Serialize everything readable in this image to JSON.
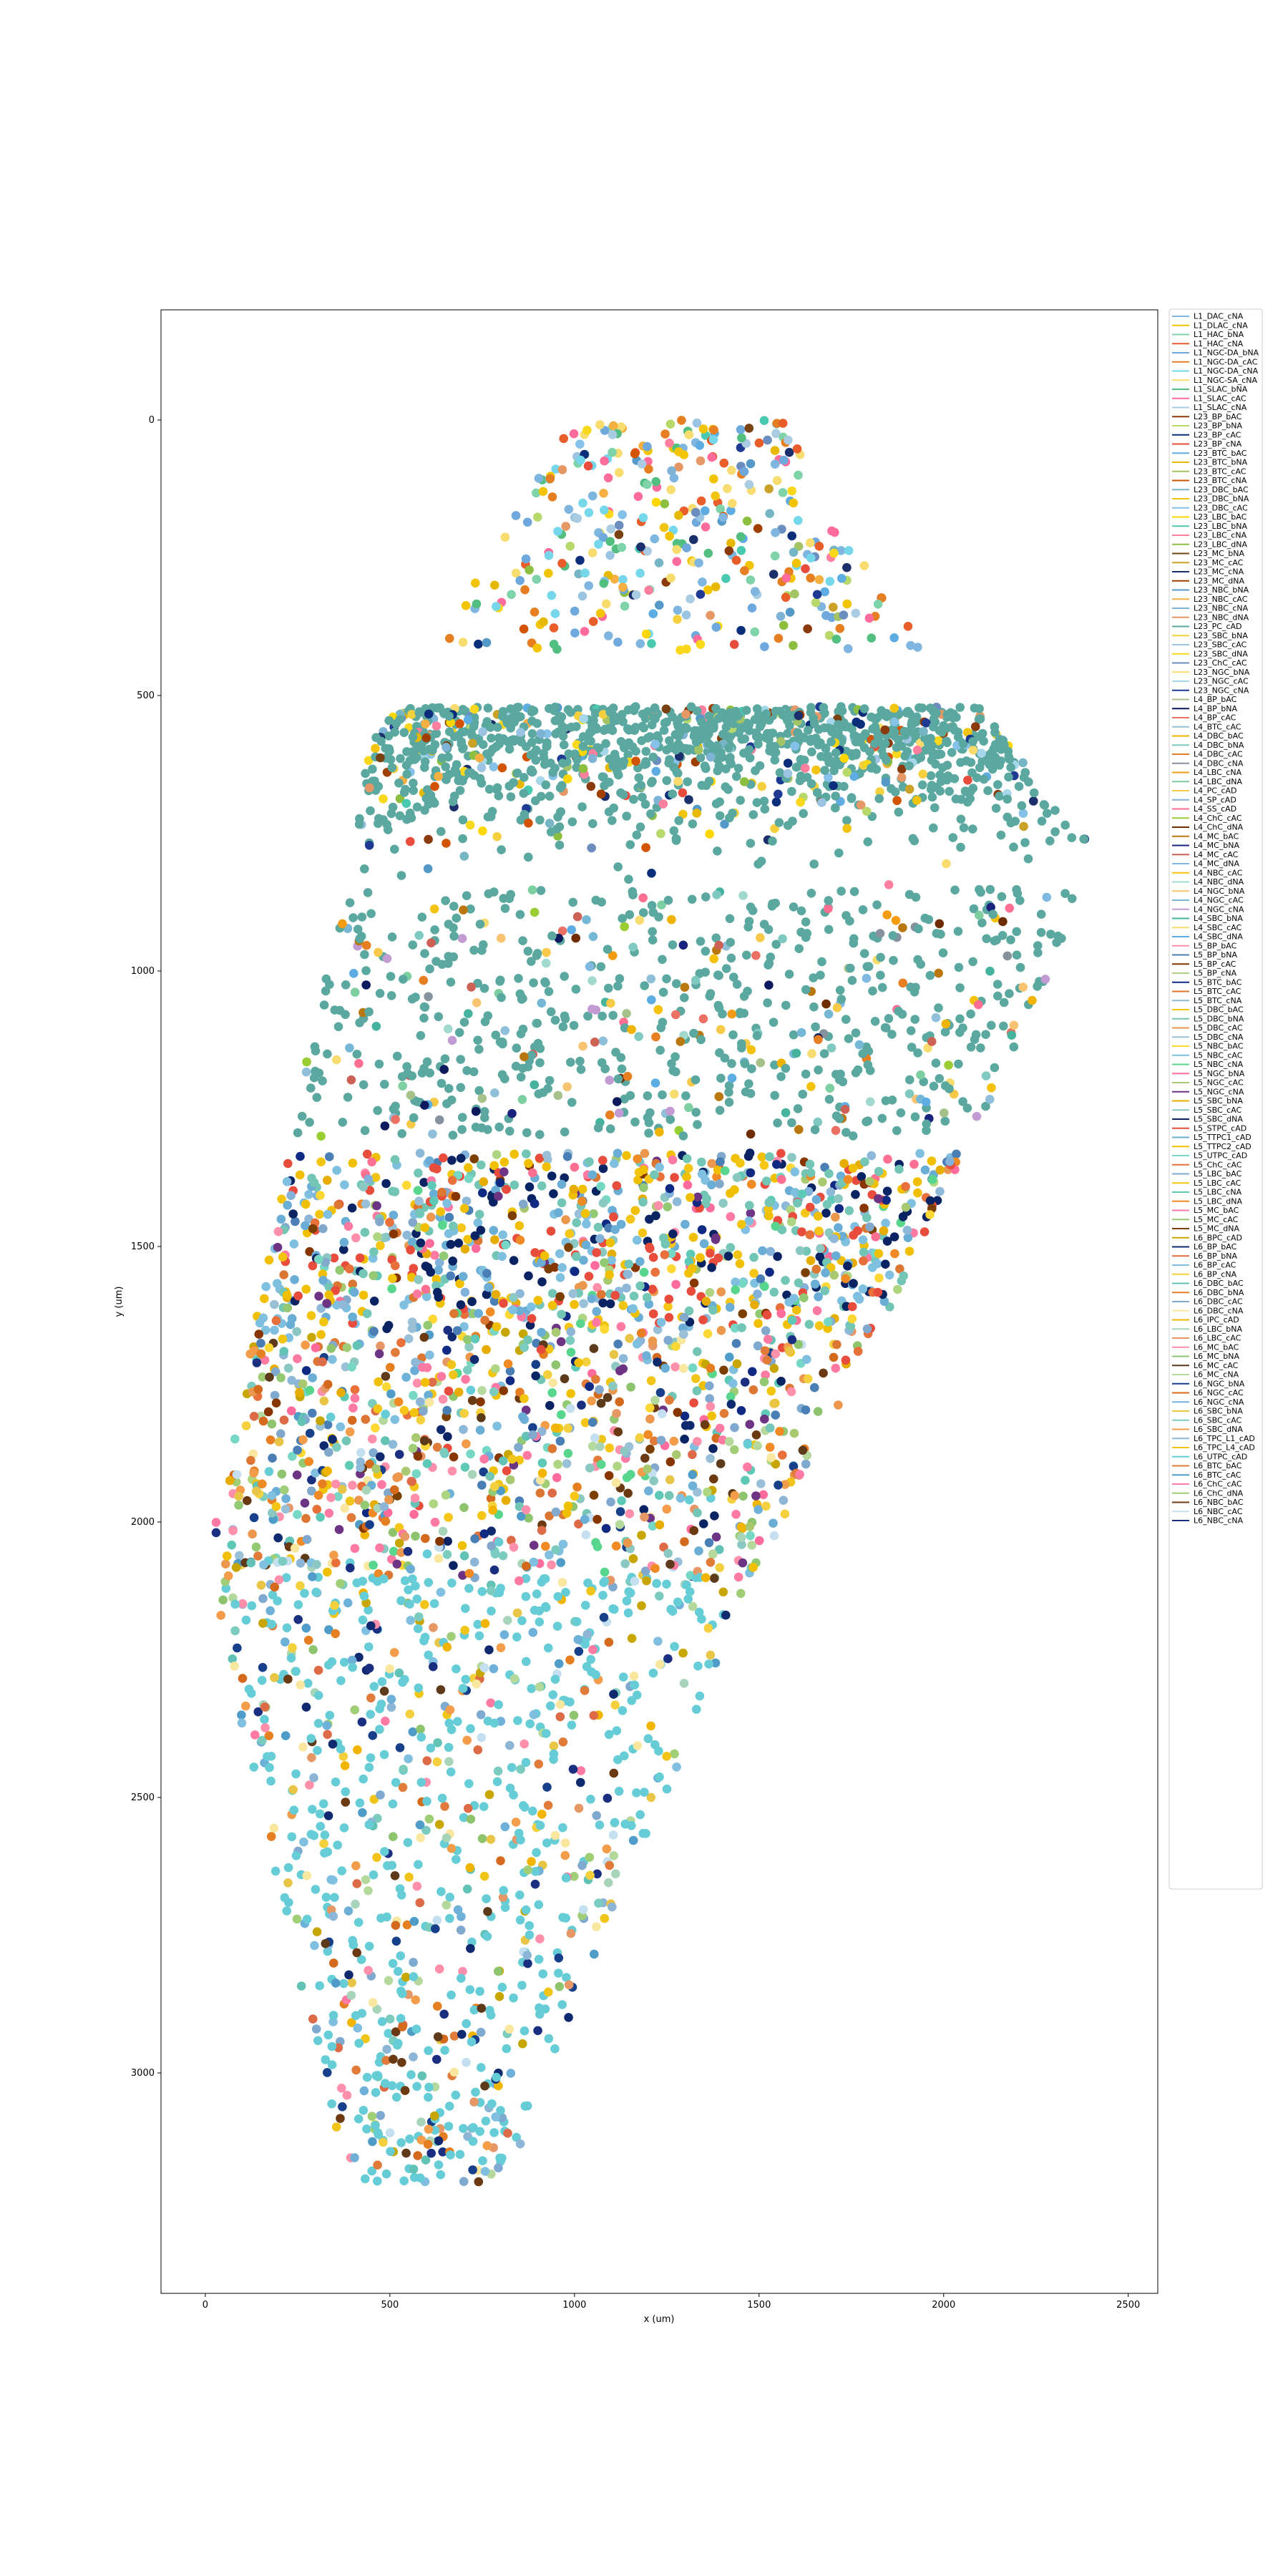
{
  "chart_data": {
    "type": "scatter",
    "title": "",
    "xlabel": "x (um)",
    "ylabel": "y (um)",
    "xlim": [
      -120,
      2580
    ],
    "ylim": [
      3400,
      -200
    ],
    "y_inverted": true,
    "xticks": [
      0,
      500,
      1000,
      1500,
      2000,
      2500
    ],
    "yticks": [
      0,
      500,
      1000,
      1500,
      2000,
      2500,
      3000
    ],
    "grid": false,
    "legend_position": "outside-right",
    "series": [
      {
        "name": "L1_DAC_cNA",
        "color": "#7eb6e0"
      },
      {
        "name": "L1_DLAC_cNA",
        "color": "#f2c400"
      },
      {
        "name": "L1_HAC_bNA",
        "color": "#7ed3a8"
      },
      {
        "name": "L1_HAC_cNA",
        "color": "#e85d2a"
      },
      {
        "name": "L1_NGC-DA_bNA",
        "color": "#6fa8dc"
      },
      {
        "name": "L1_NGC-DA_cAC",
        "color": "#e67e22"
      },
      {
        "name": "L1_NGC-DA_cNA",
        "color": "#76d7ea"
      },
      {
        "name": "L1_NGC-SA_cNA",
        "color": "#f7dc6f"
      },
      {
        "name": "L1_SLAC_bNA",
        "color": "#52be80"
      },
      {
        "name": "L1_SLAC_cAC",
        "color": "#ff6b9a"
      },
      {
        "name": "L1_SLAC_cNA",
        "color": "#a9cce3"
      },
      {
        "name": "L23_BP_bAC",
        "color": "#8b3a0e"
      },
      {
        "name": "L23_BP_bNA",
        "color": "#b7d96b"
      },
      {
        "name": "L23_BP_cAC",
        "color": "#0b2e7a"
      },
      {
        "name": "L23_BP_cNA",
        "color": "#e74c3c"
      },
      {
        "name": "L23_BTC_bAC",
        "color": "#5dade2"
      },
      {
        "name": "L23_BTC_bNA",
        "color": "#e6b800"
      },
      {
        "name": "L23_BTC_cAC",
        "color": "#a3c464"
      },
      {
        "name": "L23_BTC_cNA",
        "color": "#d35400"
      },
      {
        "name": "L23_DBC_bAC",
        "color": "#76b5c5"
      },
      {
        "name": "L23_DBC_bNA",
        "color": "#f1c40f"
      },
      {
        "name": "L23_DBC_cAC",
        "color": "#85c1e9"
      },
      {
        "name": "L23_LBC_bAC",
        "color": "#ffd700"
      },
      {
        "name": "L23_LBC_bNA",
        "color": "#48c9b0"
      },
      {
        "name": "L23_LBC_cNA",
        "color": "#ff7f9e"
      },
      {
        "name": "L23_LBC_dNA",
        "color": "#8cbf3f"
      },
      {
        "name": "L23_MC_bNA",
        "color": "#784212"
      },
      {
        "name": "L23_MC_cAC",
        "color": "#c9a227"
      },
      {
        "name": "L23_MC_cNA",
        "color": "#1b2f6b"
      },
      {
        "name": "L23_MC_dNA",
        "color": "#a04000"
      },
      {
        "name": "L23_NBC_bNA",
        "color": "#5499c7"
      },
      {
        "name": "L23_NBC_cAC",
        "color": "#f5b041"
      },
      {
        "name": "L23_NBC_cNA",
        "color": "#7fb3d5"
      },
      {
        "name": "L23_NBC_dNA",
        "color": "#e59866"
      },
      {
        "name": "L23_PC_cAD",
        "color": "#5ba8a0"
      },
      {
        "name": "L23_SBC_bNA",
        "color": "#f4d03f"
      },
      {
        "name": "L23_SBC_cAC",
        "color": "#9bc4e2"
      },
      {
        "name": "L23_SBC_dNA",
        "color": "#f9d71c"
      },
      {
        "name": "L23_ChC_cAC",
        "color": "#6c8ebf"
      },
      {
        "name": "L23_NGC_bNA",
        "color": "#fadb6e"
      },
      {
        "name": "L23_NGC_cAC",
        "color": "#a5d6e9"
      },
      {
        "name": "L23_NGC_cNA",
        "color": "#1f3a93"
      },
      {
        "name": "L4_BP_bAC",
        "color": "#a6c28a"
      },
      {
        "name": "L4_BP_bNA",
        "color": "#0d1b5e"
      },
      {
        "name": "L4_BP_cAC",
        "color": "#ec7063"
      },
      {
        "name": "L4_BTC_cAC",
        "color": "#8fbfd9"
      },
      {
        "name": "L4_DBC_bAC",
        "color": "#f0b400"
      },
      {
        "name": "L4_DBC_bNA",
        "color": "#80c9c1"
      },
      {
        "name": "L4_DBC_cAC",
        "color": "#e67e22"
      },
      {
        "name": "L4_DBC_cNA",
        "color": "#85929e"
      },
      {
        "name": "L4_LBC_cNA",
        "color": "#f39c12"
      },
      {
        "name": "L4_LBC_dNA",
        "color": "#7dcea0"
      },
      {
        "name": "L4_PC_cAD",
        "color": "#f7c948"
      },
      {
        "name": "L4_SP_cAD",
        "color": "#82b1d9"
      },
      {
        "name": "L4_SS_cAD",
        "color": "#ff6f91"
      },
      {
        "name": "L4_ChC_cAC",
        "color": "#9acd32"
      },
      {
        "name": "L4_ChC_dNA",
        "color": "#6e2c00"
      },
      {
        "name": "L4_MC_bAC",
        "color": "#b9770e"
      },
      {
        "name": "L4_MC_bNA",
        "color": "#1a237e"
      },
      {
        "name": "L4_MC_cAC",
        "color": "#cd6155"
      },
      {
        "name": "L4_MC_dNA",
        "color": "#7fb8e0"
      },
      {
        "name": "L4_NBC_cAC",
        "color": "#f4c20d"
      },
      {
        "name": "L4_NBC_dNA",
        "color": "#a2d9ce"
      },
      {
        "name": "L4_NGC_bNA",
        "color": "#f8c471"
      },
      {
        "name": "L4_NGC_cAC",
        "color": "#76b7d6"
      },
      {
        "name": "L4_NGC_cNA",
        "color": "#c39bd3"
      },
      {
        "name": "L4_SBC_bNA",
        "color": "#45b39d"
      },
      {
        "name": "L4_SBC_cAC",
        "color": "#f7dc6f"
      },
      {
        "name": "L4_SBC_dNA",
        "color": "#5dade2"
      },
      {
        "name": "L5_BP_bAC",
        "color": "#ff8fab"
      },
      {
        "name": "L5_BP_bNA",
        "color": "#4a7fb5"
      },
      {
        "name": "L5_BP_cAC",
        "color": "#873600"
      },
      {
        "name": "L5_BP_cNA",
        "color": "#aed581"
      },
      {
        "name": "L5_BTC_bAC",
        "color": "#102a83"
      },
      {
        "name": "L5_BTC_cAC",
        "color": "#dc7633"
      },
      {
        "name": "L5_BTC_cNA",
        "color": "#8eb8d8"
      },
      {
        "name": "L5_DBC_bAC",
        "color": "#f1c40f"
      },
      {
        "name": "L5_DBC_bNA",
        "color": "#73c6b6"
      },
      {
        "name": "L5_DBC_cAC",
        "color": "#eb984e"
      },
      {
        "name": "L5_DBC_cNA",
        "color": "#9ac0d8"
      },
      {
        "name": "L5_NBC_bAC",
        "color": "#fdd835"
      },
      {
        "name": "L5_NBC_cAC",
        "color": "#7fbfe0"
      },
      {
        "name": "L5_NBC_cNA",
        "color": "#58d68d"
      },
      {
        "name": "L5_NGC_bNA",
        "color": "#ff6b9a"
      },
      {
        "name": "L5_NGC_cAC",
        "color": "#a9c971"
      },
      {
        "name": "L5_NGC_cNA",
        "color": "#6c3483"
      },
      {
        "name": "L5_SBC_bNA",
        "color": "#e6ac00"
      },
      {
        "name": "L5_SBC_cAC",
        "color": "#8cc8c2"
      },
      {
        "name": "L5_SBC_dNA",
        "color": "#0a2463"
      },
      {
        "name": "L5_STPC_cAD",
        "color": "#e74c3c"
      },
      {
        "name": "L5_TTPC1_cAD",
        "color": "#6aaed6"
      },
      {
        "name": "L5_TTPC2_cAD",
        "color": "#f0c000"
      },
      {
        "name": "L5_UTPC_cAD",
        "color": "#76d7c4"
      },
      {
        "name": "L5_ChC_cAC",
        "color": "#e8703a"
      },
      {
        "name": "L5_LBC_bAC",
        "color": "#82a8cc"
      },
      {
        "name": "L5_LBC_cAC",
        "color": "#f5c518"
      },
      {
        "name": "L5_LBC_cNA",
        "color": "#5fc9b8"
      },
      {
        "name": "L5_LBC_dNA",
        "color": "#f08a24"
      },
      {
        "name": "L5_MC_bAC",
        "color": "#ff7aa2"
      },
      {
        "name": "L5_MC_cAC",
        "color": "#94c973"
      },
      {
        "name": "L5_MC_dNA",
        "color": "#7b3f00"
      },
      {
        "name": "L6_BPC_cAD",
        "color": "#c7a600"
      },
      {
        "name": "L6_BP_bAC",
        "color": "#0f2a6e"
      },
      {
        "name": "L6_BP_bNA",
        "color": "#de6b48"
      },
      {
        "name": "L6_BP_cAC",
        "color": "#80bfe0"
      },
      {
        "name": "L6_BP_cNA",
        "color": "#f4d03f"
      },
      {
        "name": "L6_DBC_bAC",
        "color": "#62c2b5"
      },
      {
        "name": "L6_DBC_bNA",
        "color": "#e67e22"
      },
      {
        "name": "L6_DBC_cAC",
        "color": "#7fa9cf"
      },
      {
        "name": "L6_DBC_cNA",
        "color": "#f9e79f"
      },
      {
        "name": "L6_IPC_cAD",
        "color": "#f1b500"
      },
      {
        "name": "L6_LBC_bNA",
        "color": "#a8d5ba"
      },
      {
        "name": "L6_LBC_cAC",
        "color": "#e59866"
      },
      {
        "name": "L6_MC_bAC",
        "color": "#ff8fab"
      },
      {
        "name": "L6_MC_bNA",
        "color": "#8fc46e"
      },
      {
        "name": "L6_MC_cAC",
        "color": "#5d3a1a"
      },
      {
        "name": "L6_MC_cNA",
        "color": "#b5d99c"
      },
      {
        "name": "L6_NGC_bNA",
        "color": "#173f8a"
      },
      {
        "name": "L6_NGC_cAC",
        "color": "#d46a1e"
      },
      {
        "name": "L6_NGC_cNA",
        "color": "#6fb0d8"
      },
      {
        "name": "L6_SBC_bNA",
        "color": "#e8c547"
      },
      {
        "name": "L6_SBC_cAC",
        "color": "#7bcbbf"
      },
      {
        "name": "L6_SBC_dNA",
        "color": "#f39c4a"
      },
      {
        "name": "L6_TPC_L1_cAD",
        "color": "#8db6d6"
      },
      {
        "name": "L6_TPC_L4_cAD",
        "color": "#f0c419"
      },
      {
        "name": "L6_UTPC_cAD",
        "color": "#66cdd6"
      },
      {
        "name": "L6_BTC_bAC",
        "color": "#e07b39"
      },
      {
        "name": "L6_BTC_cAC",
        "color": "#4f9cc8"
      },
      {
        "name": "L6_ChC_cAC",
        "color": "#ff7aa2"
      },
      {
        "name": "L6_ChC_dNA",
        "color": "#9fce76"
      },
      {
        "name": "L6_NBC_bAC",
        "color": "#6b3a12"
      },
      {
        "name": "L6_NBC_cAC",
        "color": "#c4dff0"
      },
      {
        "name": "L6_NBC_cNA",
        "color": "#1a2f80"
      }
    ]
  }
}
